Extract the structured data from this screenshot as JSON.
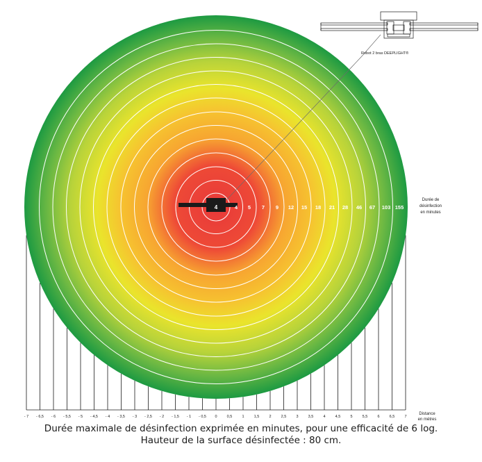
{
  "robot_label": "Robot 2 bras DEEPLIGHT®",
  "center_value": "4",
  "ring_values": [
    "4",
    "5",
    "7",
    "9",
    "12",
    "15",
    "18",
    "21",
    "28",
    "46",
    "67",
    "103",
    "155"
  ],
  "side_label": [
    "Durée de",
    "désinfection",
    "en minutes"
  ],
  "distance_label": [
    "Distance",
    "en mètres"
  ],
  "distance_ticks": [
    "- 7",
    "- 6,5",
    "- 6",
    "- 5,5",
    "- 5",
    "- 4,5",
    "- 4",
    "- 3,5",
    "- 3",
    "- 2,5",
    "- 2",
    "- 1,5",
    "- 1",
    "- 0,5",
    "0",
    "0,5",
    "1",
    "1,5",
    "2",
    "2,5",
    "3",
    "3,5",
    "4",
    "4,5",
    "5",
    "5,5",
    "6",
    "6,5",
    "7"
  ],
  "caption_line1": "Durée maximale de désinfection exprimée en minutes, pour une efficacité de 6 log.",
  "caption_line2": "Hauteur de la surface désinfectée : 80 cm.",
  "colors": {
    "center": "#e8393a",
    "orange": "#f7a531",
    "yellow": "#eae42c",
    "light_green": "#a8cc3c",
    "edge_green": "#1d9a42",
    "ring_line": "#ffffff",
    "robot": "#1a1a1a"
  }
}
